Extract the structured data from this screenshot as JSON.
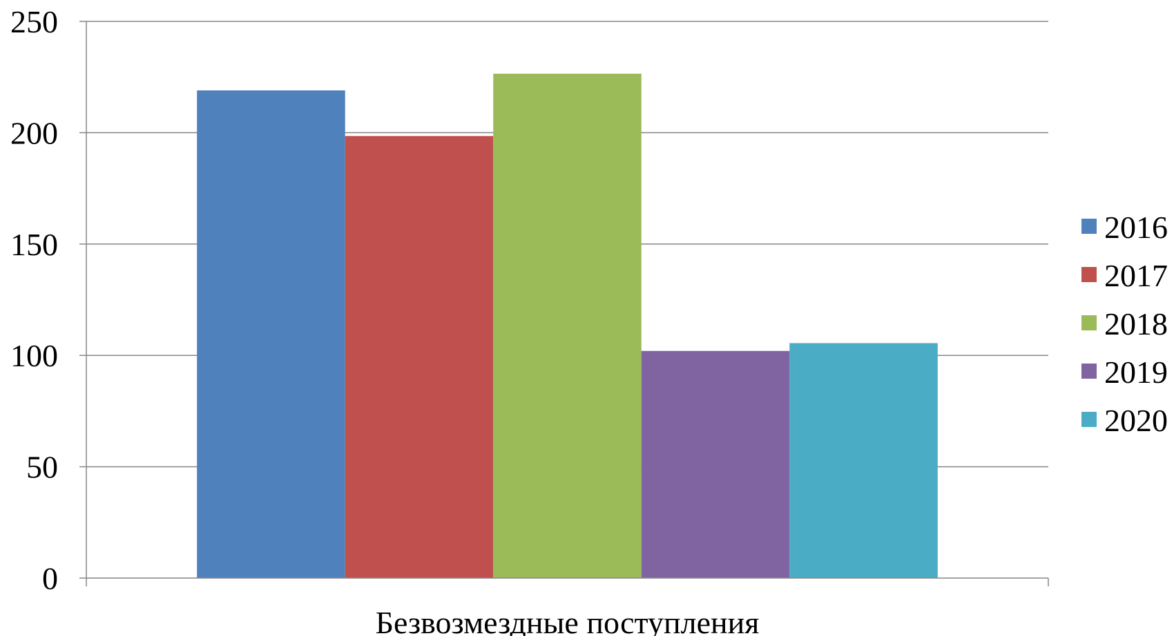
{
  "chart_data": {
    "type": "bar",
    "categories": [
      "Безвозмездные поступления"
    ],
    "series": [
      {
        "name": "2016",
        "values": [
          219
        ],
        "color": "#4F81BD"
      },
      {
        "name": "2017",
        "values": [
          198.5
        ],
        "color": "#C0504D"
      },
      {
        "name": "2018",
        "values": [
          226.5
        ],
        "color": "#9BBB59"
      },
      {
        "name": "2019",
        "values": [
          102
        ],
        "color": "#8064A2"
      },
      {
        "name": "2020",
        "values": [
          105.5
        ],
        "color": "#4BACC6"
      }
    ],
    "title": "",
    "xlabel": "",
    "ylabel": "",
    "ylim": [
      0,
      250
    ],
    "yticks": [
      "0",
      "50",
      "100",
      "150",
      "200",
      "250"
    ],
    "grid": true,
    "legend_position": "right"
  }
}
